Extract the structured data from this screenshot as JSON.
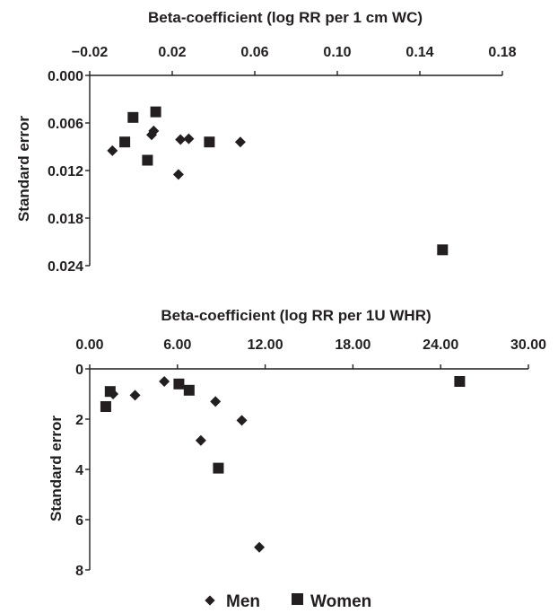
{
  "chart_data": [
    {
      "type": "scatter",
      "title": "",
      "xlabel": "Beta-coefficient (log RR per 1 cm WC)",
      "ylabel": "Standard error",
      "xlim": [
        -0.02,
        0.18
      ],
      "ylim": [
        0.0,
        0.024
      ],
      "y_inverted": true,
      "x_axis_position": "top",
      "x_ticks": [
        "−0.02",
        "0.02",
        "0.06",
        "0.10",
        "0.14",
        "0.18"
      ],
      "x_tick_values": [
        -0.02,
        0.02,
        0.06,
        0.1,
        0.14,
        0.18
      ],
      "y_ticks": [
        "0.000",
        "0.006",
        "0.012",
        "0.018",
        "0.024"
      ],
      "y_tick_values": [
        0.0,
        0.006,
        0.012,
        0.018,
        0.024
      ],
      "grid": false,
      "series": [
        {
          "name": "Men",
          "marker": "diamond",
          "points": [
            {
              "x": -0.009,
              "y": 0.0095
            },
            {
              "x": 0.01,
              "y": 0.0075
            },
            {
              "x": 0.011,
              "y": 0.007
            },
            {
              "x": 0.023,
              "y": 0.0125
            },
            {
              "x": 0.024,
              "y": 0.0081
            },
            {
              "x": 0.028,
              "y": 0.008
            },
            {
              "x": 0.053,
              "y": 0.0084
            }
          ]
        },
        {
          "name": "Women",
          "marker": "square",
          "points": [
            {
              "x": -0.003,
              "y": 0.0084
            },
            {
              "x": 0.001,
              "y": 0.0053
            },
            {
              "x": 0.008,
              "y": 0.0107
            },
            {
              "x": 0.012,
              "y": 0.0046
            },
            {
              "x": 0.038,
              "y": 0.0084
            },
            {
              "x": 0.151,
              "y": 0.022
            }
          ]
        }
      ]
    },
    {
      "type": "scatter",
      "title": "",
      "xlabel": "Beta-coefficient (log RR per 1U WHR)",
      "ylabel": "Standard error",
      "xlim": [
        0.0,
        30.0
      ],
      "ylim": [
        0,
        8
      ],
      "y_inverted": true,
      "x_axis_position": "top",
      "x_ticks": [
        "0.00",
        "6.00",
        "12.00",
        "18.00",
        "24.00",
        "30.00"
      ],
      "x_tick_values": [
        0,
        6,
        12,
        18,
        24,
        30
      ],
      "y_ticks": [
        "0",
        "2",
        "4",
        "6",
        "8"
      ],
      "y_tick_values": [
        0,
        2,
        4,
        6,
        8
      ],
      "grid": false,
      "series": [
        {
          "name": "Men",
          "marker": "diamond",
          "points": [
            {
              "x": 1.6,
              "y": 1.0
            },
            {
              "x": 3.1,
              "y": 1.05
            },
            {
              "x": 5.1,
              "y": 0.5
            },
            {
              "x": 7.6,
              "y": 2.85
            },
            {
              "x": 8.6,
              "y": 1.3
            },
            {
              "x": 10.4,
              "y": 2.05
            },
            {
              "x": 11.6,
              "y": 7.1
            }
          ]
        },
        {
          "name": "Women",
          "marker": "square",
          "points": [
            {
              "x": 1.1,
              "y": 1.5
            },
            {
              "x": 1.4,
              "y": 0.9
            },
            {
              "x": 6.1,
              "y": 0.6
            },
            {
              "x": 6.8,
              "y": 0.85
            },
            {
              "x": 8.8,
              "y": 3.95
            },
            {
              "x": 25.3,
              "y": 0.5
            }
          ]
        }
      ]
    }
  ],
  "legend": {
    "placement": "bottom-center",
    "items": [
      {
        "label": "Men",
        "marker": "diamond"
      },
      {
        "label": "Women",
        "marker": "square"
      }
    ]
  },
  "colors": {
    "ink": "#231f20",
    "background": "#ffffff"
  }
}
